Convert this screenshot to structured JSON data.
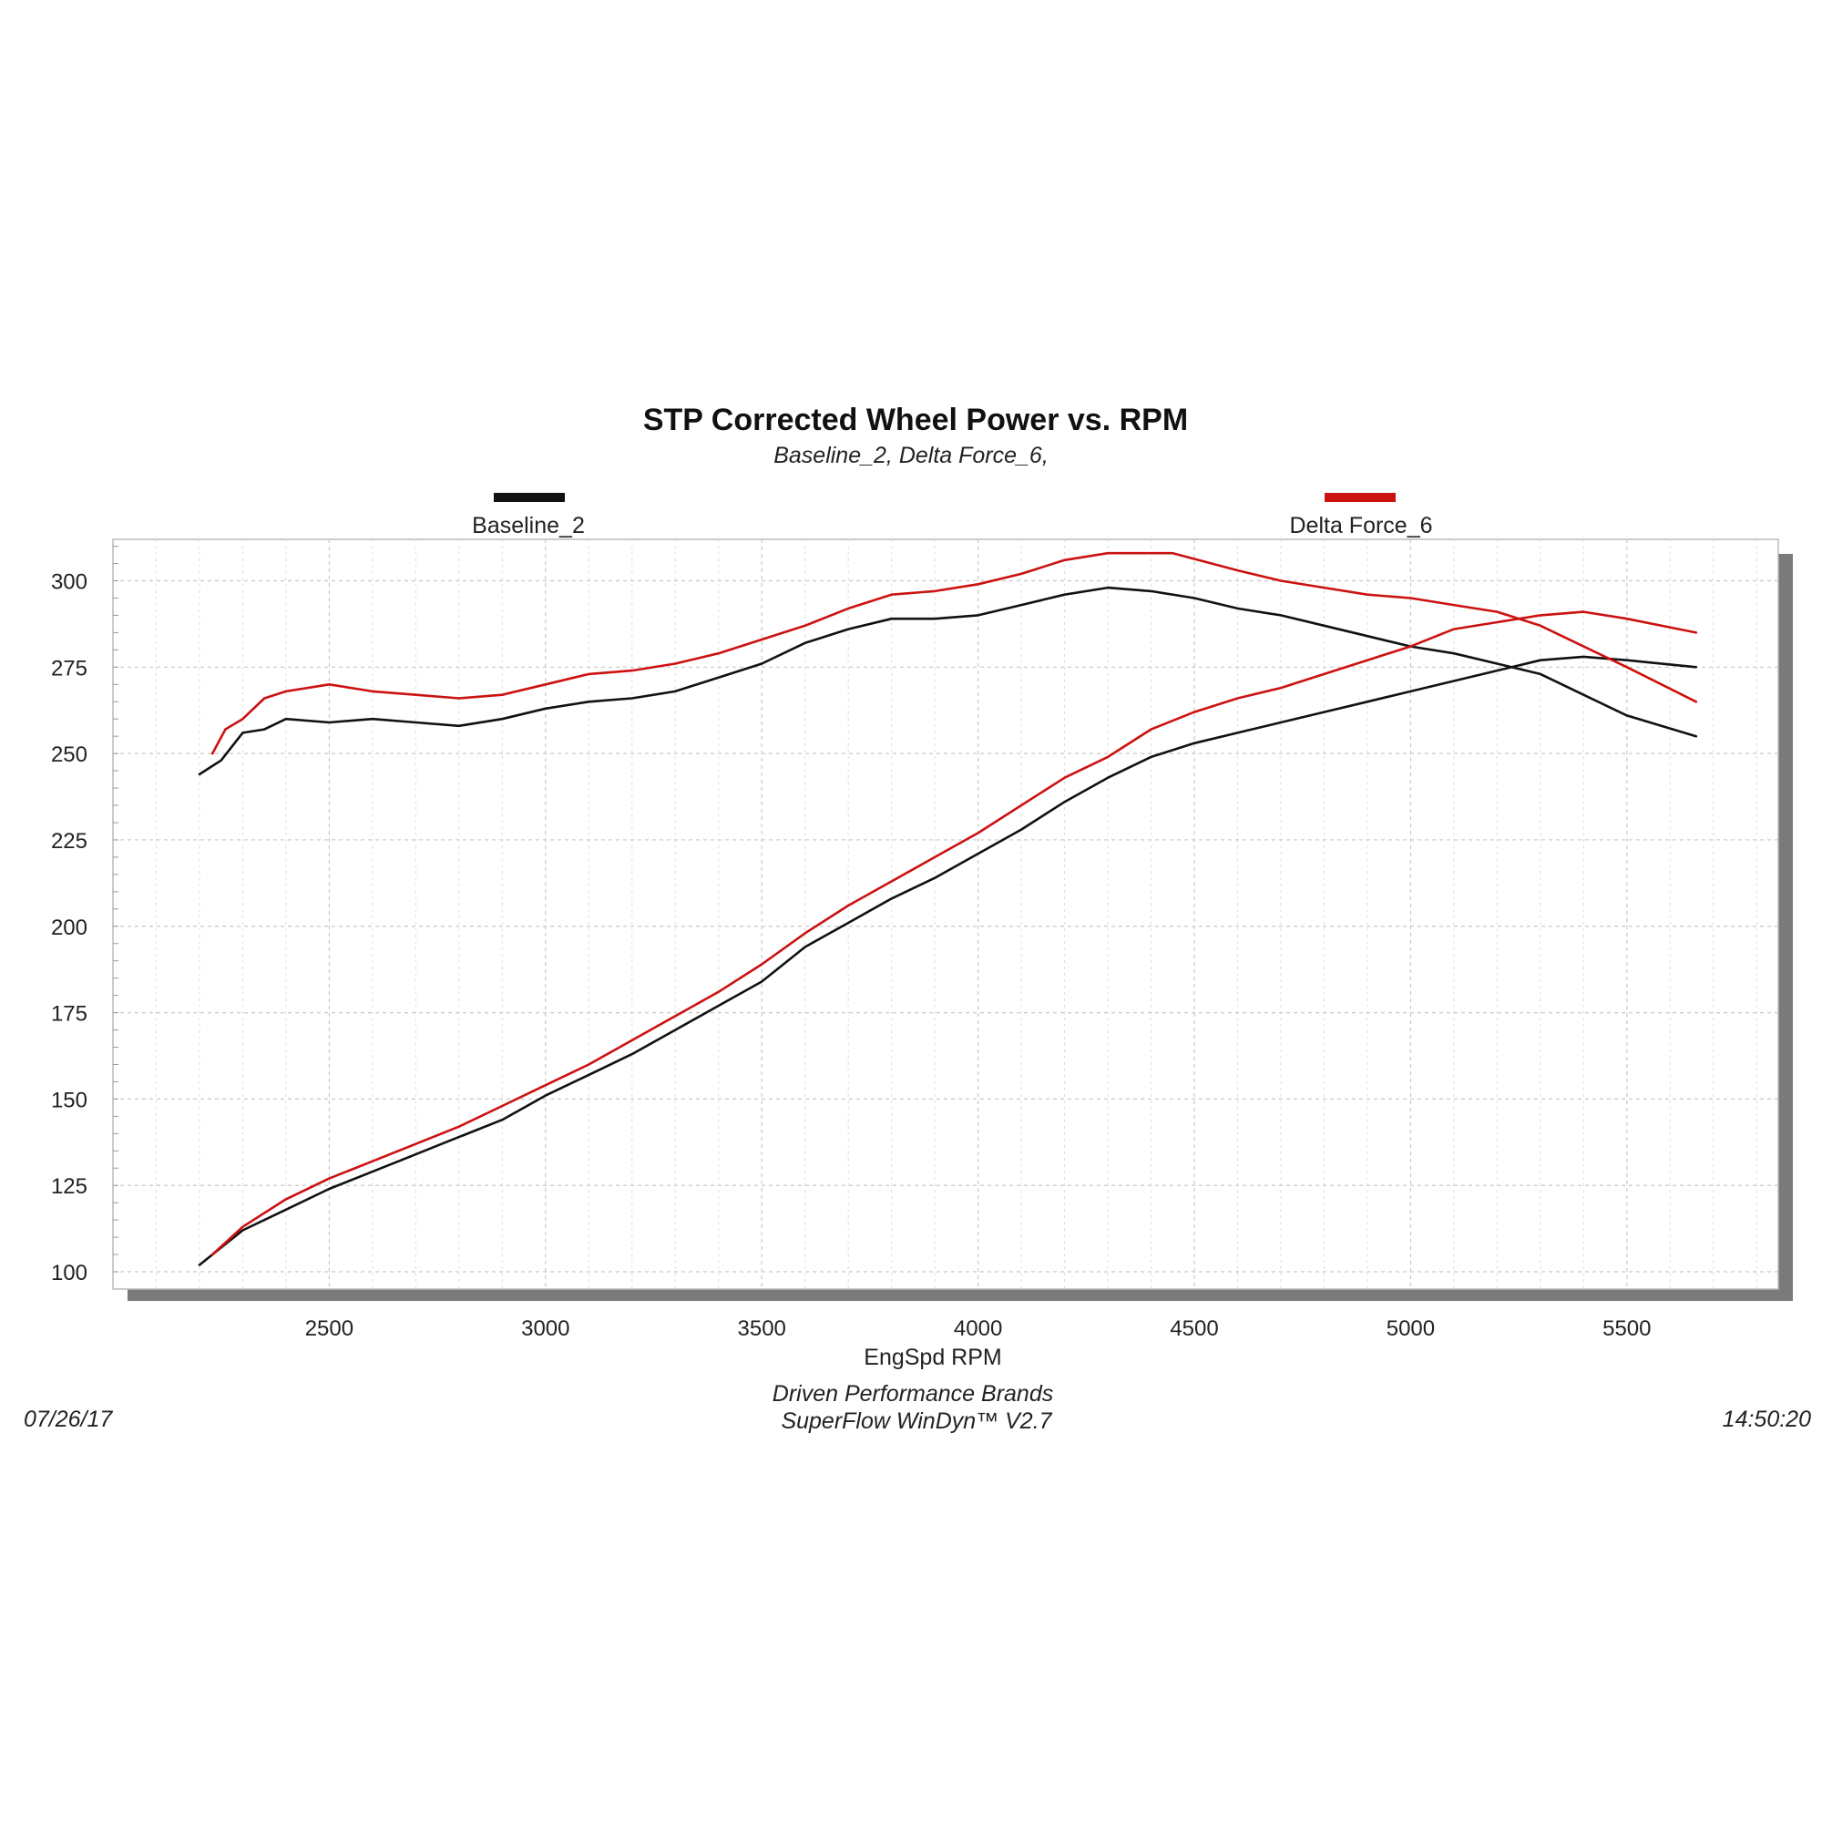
{
  "chart_data": {
    "type": "line",
    "title": "STP Corrected Wheel Power vs. RPM",
    "subtitle": "Baseline_2, Delta Force_6,",
    "xlabel": "EngSpd  RPM",
    "ylabel": "",
    "xlim": [
      2000,
      5850
    ],
    "ylim": [
      95,
      312
    ],
    "x_ticks": [
      2500,
      3000,
      3500,
      4000,
      4500,
      5000,
      5500
    ],
    "x_tick_labels": [
      "2500",
      "3000",
      "3500",
      "4000",
      "4500",
      "5000",
      "5500"
    ],
    "y_ticks": [
      100,
      125,
      150,
      175,
      200,
      225,
      250,
      275,
      300
    ],
    "y_tick_labels": [
      "100",
      "125",
      "150",
      "175",
      "200",
      "225",
      "250",
      "275",
      "300"
    ],
    "grid": true,
    "legend": {
      "placement": "top",
      "entries": [
        {
          "label": "Baseline_2",
          "color": "#111111"
        },
        {
          "label": "Delta Force_6",
          "color": "#cc1111"
        }
      ]
    },
    "series": [
      {
        "name": "Baseline_2",
        "metric": "torque",
        "color": "#111111",
        "points": [
          [
            2200,
            244
          ],
          [
            2250,
            248
          ],
          [
            2300,
            256
          ],
          [
            2350,
            257
          ],
          [
            2400,
            260
          ],
          [
            2500,
            259
          ],
          [
            2600,
            260
          ],
          [
            2700,
            259
          ],
          [
            2800,
            258
          ],
          [
            2900,
            260
          ],
          [
            3000,
            263
          ],
          [
            3100,
            265
          ],
          [
            3200,
            266
          ],
          [
            3300,
            268
          ],
          [
            3400,
            272
          ],
          [
            3500,
            276
          ],
          [
            3600,
            282
          ],
          [
            3700,
            286
          ],
          [
            3800,
            289
          ],
          [
            3900,
            289
          ],
          [
            4000,
            290
          ],
          [
            4100,
            293
          ],
          [
            4200,
            296
          ],
          [
            4300,
            298
          ],
          [
            4400,
            297
          ],
          [
            4500,
            295
          ],
          [
            4600,
            292
          ],
          [
            4700,
            290
          ],
          [
            4800,
            287
          ],
          [
            4900,
            284
          ],
          [
            5000,
            281
          ],
          [
            5100,
            279
          ],
          [
            5200,
            276
          ],
          [
            5300,
            273
          ],
          [
            5400,
            267
          ],
          [
            5500,
            261
          ],
          [
            5660,
            255
          ]
        ]
      },
      {
        "name": "Baseline_2",
        "metric": "power",
        "color": "#111111",
        "points": [
          [
            2200,
            102
          ],
          [
            2300,
            112
          ],
          [
            2400,
            118
          ],
          [
            2500,
            124
          ],
          [
            2600,
            129
          ],
          [
            2700,
            134
          ],
          [
            2800,
            139
          ],
          [
            2900,
            144
          ],
          [
            3000,
            151
          ],
          [
            3100,
            157
          ],
          [
            3200,
            163
          ],
          [
            3300,
            170
          ],
          [
            3400,
            177
          ],
          [
            3500,
            184
          ],
          [
            3600,
            194
          ],
          [
            3700,
            201
          ],
          [
            3800,
            208
          ],
          [
            3900,
            214
          ],
          [
            4000,
            221
          ],
          [
            4100,
            228
          ],
          [
            4200,
            236
          ],
          [
            4300,
            243
          ],
          [
            4400,
            249
          ],
          [
            4500,
            253
          ],
          [
            4600,
            256
          ],
          [
            4700,
            259
          ],
          [
            4800,
            262
          ],
          [
            4900,
            265
          ],
          [
            5000,
            268
          ],
          [
            5100,
            271
          ],
          [
            5200,
            274
          ],
          [
            5300,
            277
          ],
          [
            5400,
            278
          ],
          [
            5500,
            277
          ],
          [
            5660,
            275
          ]
        ]
      },
      {
        "name": "Delta Force_6",
        "metric": "torque",
        "color": "#cc1111",
        "points": [
          [
            2230,
            250
          ],
          [
            2260,
            257
          ],
          [
            2300,
            260
          ],
          [
            2350,
            266
          ],
          [
            2400,
            268
          ],
          [
            2500,
            270
          ],
          [
            2600,
            268
          ],
          [
            2700,
            267
          ],
          [
            2800,
            266
          ],
          [
            2900,
            267
          ],
          [
            3000,
            270
          ],
          [
            3100,
            273
          ],
          [
            3200,
            274
          ],
          [
            3300,
            276
          ],
          [
            3400,
            279
          ],
          [
            3500,
            283
          ],
          [
            3600,
            287
          ],
          [
            3700,
            292
          ],
          [
            3800,
            296
          ],
          [
            3900,
            297
          ],
          [
            4000,
            299
          ],
          [
            4100,
            302
          ],
          [
            4200,
            306
          ],
          [
            4300,
            308
          ],
          [
            4450,
            308
          ],
          [
            4600,
            303
          ],
          [
            4700,
            300
          ],
          [
            4800,
            298
          ],
          [
            4900,
            296
          ],
          [
            5000,
            295
          ],
          [
            5100,
            293
          ],
          [
            5200,
            291
          ],
          [
            5300,
            287
          ],
          [
            5400,
            281
          ],
          [
            5500,
            275
          ],
          [
            5660,
            265
          ]
        ]
      },
      {
        "name": "Delta Force_6",
        "metric": "power",
        "color": "#cc1111",
        "points": [
          [
            2230,
            105
          ],
          [
            2300,
            113
          ],
          [
            2400,
            121
          ],
          [
            2500,
            127
          ],
          [
            2600,
            132
          ],
          [
            2700,
            137
          ],
          [
            2800,
            142
          ],
          [
            2900,
            148
          ],
          [
            3000,
            154
          ],
          [
            3100,
            160
          ],
          [
            3200,
            167
          ],
          [
            3300,
            174
          ],
          [
            3400,
            181
          ],
          [
            3500,
            189
          ],
          [
            3600,
            198
          ],
          [
            3700,
            206
          ],
          [
            3800,
            213
          ],
          [
            3900,
            220
          ],
          [
            4000,
            227
          ],
          [
            4100,
            235
          ],
          [
            4200,
            243
          ],
          [
            4300,
            249
          ],
          [
            4400,
            257
          ],
          [
            4500,
            262
          ],
          [
            4600,
            266
          ],
          [
            4700,
            269
          ],
          [
            4800,
            273
          ],
          [
            4900,
            277
          ],
          [
            5000,
            281
          ],
          [
            5100,
            286
          ],
          [
            5200,
            288
          ],
          [
            5300,
            290
          ],
          [
            5400,
            291
          ],
          [
            5500,
            289
          ],
          [
            5660,
            285
          ]
        ]
      }
    ]
  },
  "footer": {
    "company": "Driven Performance Brands",
    "software": "SuperFlow WinDyn™  V2.7",
    "date": "07/26/17",
    "time": "14:50:20"
  }
}
